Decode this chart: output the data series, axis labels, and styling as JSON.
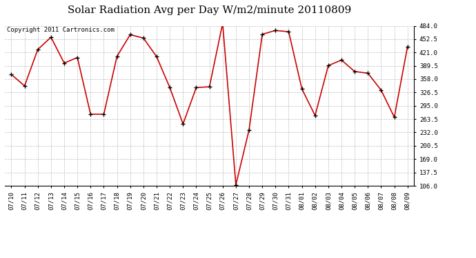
{
  "title": "Solar Radiation Avg per Day W/m2/minute 20110809",
  "copyright": "Copyright 2011 Cartronics.com",
  "dates": [
    "07/10",
    "07/11",
    "07/12",
    "07/13",
    "07/14",
    "07/15",
    "07/16",
    "07/17",
    "07/18",
    "07/19",
    "07/20",
    "07/21",
    "07/22",
    "07/23",
    "07/24",
    "07/25",
    "07/26",
    "07/27",
    "07/28",
    "07/29",
    "07/30",
    "07/31",
    "08/01",
    "08/02",
    "08/03",
    "08/04",
    "08/05",
    "08/06",
    "08/07",
    "08/08",
    "08/09"
  ],
  "values": [
    369,
    342,
    428,
    457,
    396,
    409,
    275,
    275,
    412,
    463,
    455,
    411,
    338,
    252,
    338,
    340,
    490,
    108,
    238,
    464,
    473,
    470,
    335,
    272,
    390,
    403,
    376,
    372,
    332,
    268,
    435
  ],
  "line_color": "#cc0000",
  "marker_color": "#000000",
  "bg_color": "#ffffff",
  "grid_color": "#bbbbbb",
  "ylim_min": 106.0,
  "ylim_max": 484.0,
  "yticks": [
    106.0,
    137.5,
    169.0,
    200.5,
    232.0,
    263.5,
    295.0,
    326.5,
    358.0,
    389.5,
    421.0,
    452.5,
    484.0
  ],
  "title_fontsize": 11,
  "copyright_fontsize": 6.5,
  "tick_fontsize": 6.5,
  "figwidth": 6.9,
  "figheight": 3.75,
  "dpi": 100
}
